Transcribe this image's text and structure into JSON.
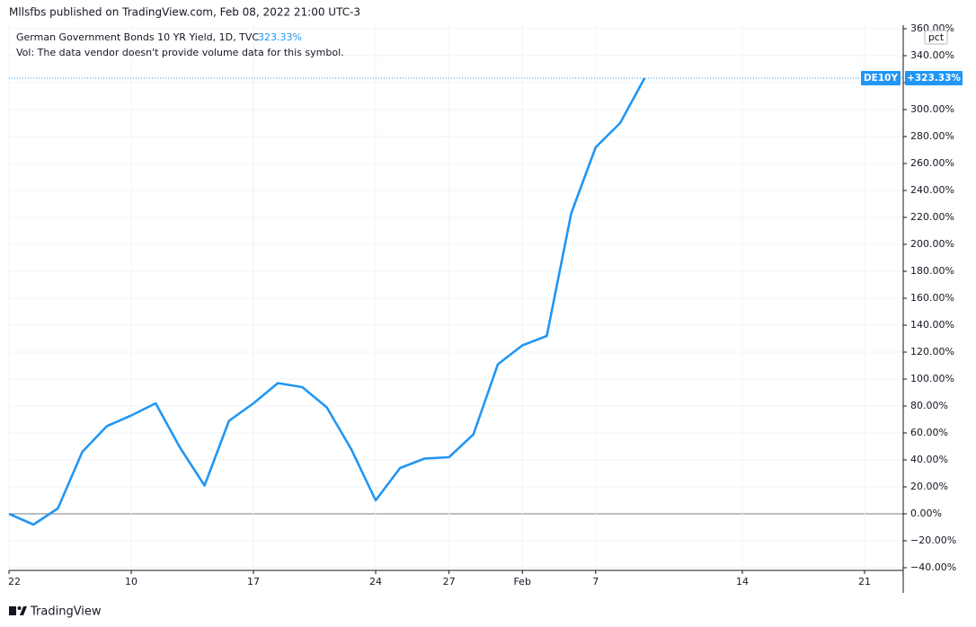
{
  "header": "Mllsfbs published on TradingView.com, Feb 08, 2022 21:00 UTC-3",
  "footer": "TradingView",
  "chart_data": {
    "type": "line",
    "legend_title": "German Government Bonds 10 YR Yield, 1D, TVC",
    "legend_value": "323.33%",
    "volume_note": "Vol: The data vendor doesn't provide volume data for this symbol.",
    "unit": "pct",
    "symbol_tag": "DE10Y",
    "last_value_label": "+323.33%",
    "categories": [
      "22",
      null,
      null,
      null,
      null,
      "10",
      null,
      null,
      null,
      null,
      "17",
      null,
      null,
      null,
      null,
      "24",
      null,
      null,
      "27",
      null,
      null,
      "Feb",
      null,
      null,
      "7",
      null,
      null,
      null,
      null,
      null,
      "14",
      null,
      null,
      null,
      null,
      "21",
      null
    ],
    "series": [
      {
        "name": "DE10Y",
        "color": "#2196f3",
        "values": [
          0,
          -8,
          4,
          46,
          65,
          73,
          82,
          49,
          21,
          69,
          82,
          97,
          94,
          79,
          48,
          10,
          34,
          41,
          42,
          59,
          111,
          125,
          132,
          223,
          272,
          290,
          323.33,
          null,
          null,
          null,
          null,
          null,
          null,
          null,
          null,
          null,
          null
        ]
      }
    ],
    "ylim": [
      -40,
      360
    ],
    "yticks": [
      {
        "value": -40,
        "label": "−40.00%"
      },
      {
        "value": -20,
        "label": "−20.00%"
      },
      {
        "value": 0,
        "label": "0.00%"
      },
      {
        "value": 20,
        "label": "20.00%"
      },
      {
        "value": 40,
        "label": "40.00%"
      },
      {
        "value": 60,
        "label": "60.00%"
      },
      {
        "value": 80,
        "label": "80.00%"
      },
      {
        "value": 100,
        "label": "100.00%"
      },
      {
        "value": 120,
        "label": "120.00%"
      },
      {
        "value": 140,
        "label": "140.00%"
      },
      {
        "value": 160,
        "label": "160.00%"
      },
      {
        "value": 180,
        "label": "180.00%"
      },
      {
        "value": 200,
        "label": "200.00%"
      },
      {
        "value": 220,
        "label": "220.00%"
      },
      {
        "value": 240,
        "label": "240.00%"
      },
      {
        "value": 260,
        "label": "260.00%"
      },
      {
        "value": 280,
        "label": "280.00%"
      },
      {
        "value": 300,
        "label": "300.00%"
      },
      {
        "value": 320,
        "label": "320.00%"
      },
      {
        "value": 340,
        "label": "340.00%"
      },
      {
        "value": 360,
        "label": "360.00%"
      }
    ],
    "grid": true
  }
}
